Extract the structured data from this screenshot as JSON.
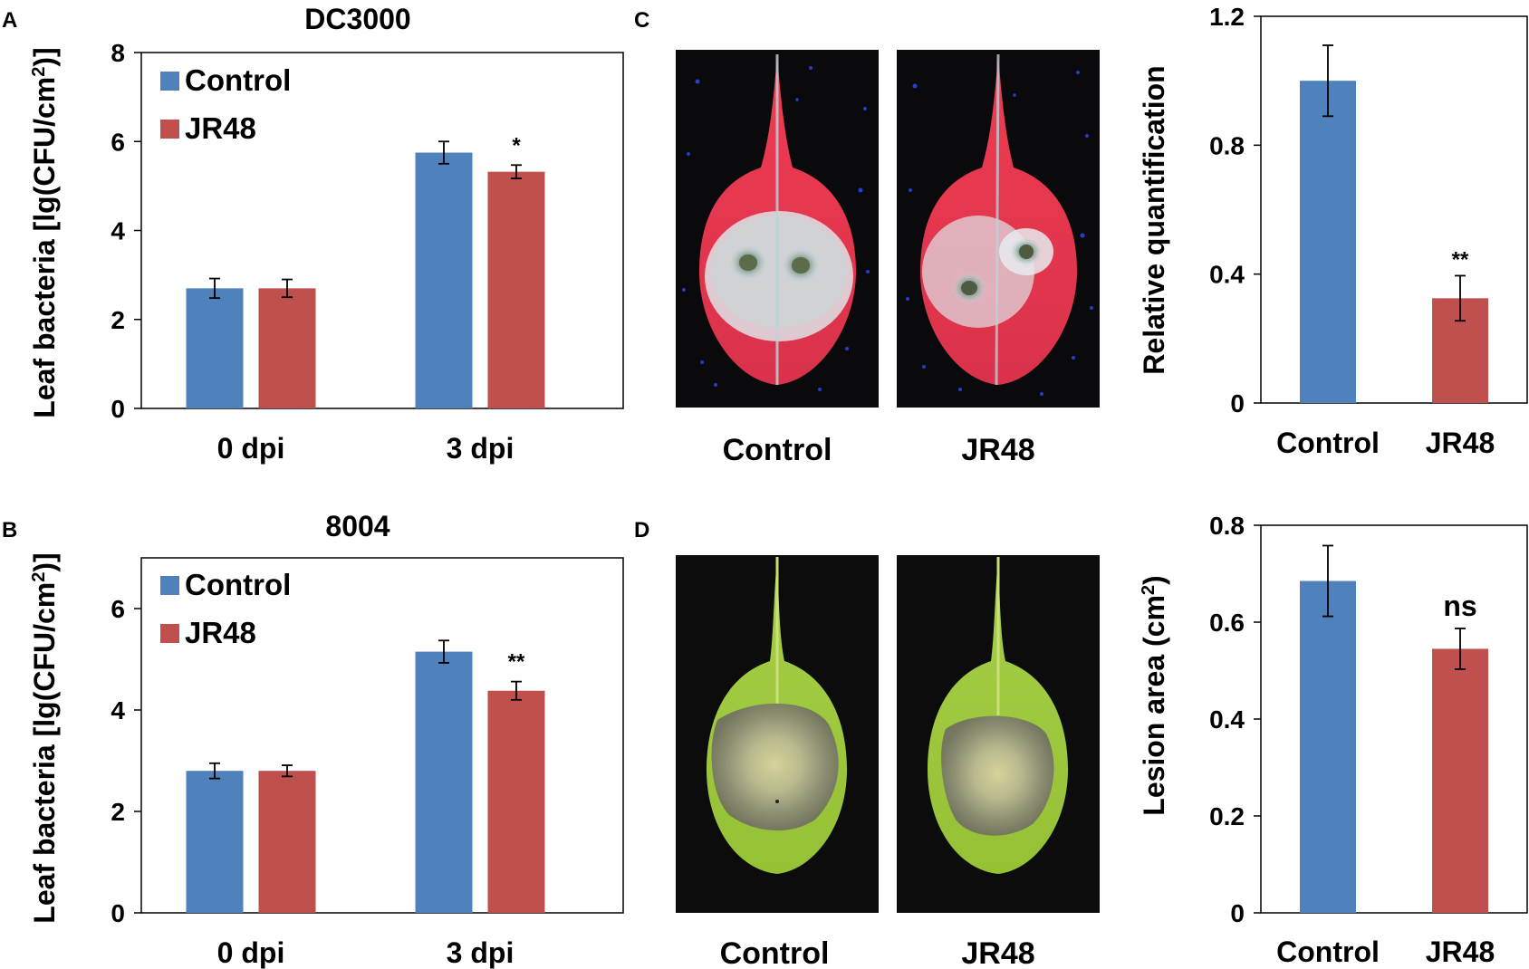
{
  "figure": {
    "panel_letters": [
      "A",
      "B",
      "C",
      "D"
    ]
  },
  "chart_data": [
    {
      "id": "A",
      "type": "bar",
      "title": "DC3000",
      "ylabel": "Leaf bacteria [lg(CFU/cm²)]",
      "ylabel_parts": [
        "Leaf bacteria [lg(CFU/cm",
        "2",
        ")]"
      ],
      "xlabel": "",
      "ylim": [
        0,
        8
      ],
      "yticks": [
        0,
        2,
        4,
        6,
        8
      ],
      "ytick_labels": [
        "0",
        "2",
        "4",
        "6",
        "8"
      ],
      "categories": [
        "0 dpi",
        "3 dpi"
      ],
      "legend": {
        "placement": "top-left",
        "entries": [
          "Control",
          "JR48"
        ]
      },
      "series": [
        {
          "name": "Control",
          "color": "#4F81BD",
          "values": [
            2.7,
            5.75
          ],
          "errors": [
            0.22,
            0.25
          ]
        },
        {
          "name": "JR48",
          "color": "#C0504D",
          "values": [
            2.7,
            5.32
          ],
          "errors": [
            0.2,
            0.15
          ]
        }
      ],
      "significance": [
        {
          "category": "3 dpi",
          "series": "JR48",
          "label": "*"
        }
      ]
    },
    {
      "id": "B",
      "type": "bar",
      "title": "8004",
      "ylabel": "Leaf bacteria [lg(CFU/cm²)]",
      "ylabel_parts": [
        "Leaf bacteria [lg(CFU/cm",
        "2",
        ")]"
      ],
      "xlabel": "",
      "ylim": [
        0,
        7
      ],
      "yticks": [
        0,
        2,
        4,
        6
      ],
      "ytick_labels": [
        "0",
        "2",
        "4",
        "6"
      ],
      "categories": [
        "0 dpi",
        "3 dpi"
      ],
      "legend": {
        "placement": "top-left",
        "entries": [
          "Control",
          "JR48"
        ]
      },
      "series": [
        {
          "name": "Control",
          "color": "#4F81BD",
          "values": [
            2.8,
            5.15
          ],
          "errors": [
            0.15,
            0.22
          ]
        },
        {
          "name": "JR48",
          "color": "#C0504D",
          "values": [
            2.8,
            4.38
          ],
          "errors": [
            0.11,
            0.18
          ]
        }
      ],
      "significance": [
        {
          "category": "3 dpi",
          "series": "JR48",
          "label": "**"
        }
      ]
    },
    {
      "id": "C-chart",
      "type": "bar",
      "title": "",
      "ylabel": "Relative quantification",
      "xlabel": "",
      "ylim": [
        0,
        1.2
      ],
      "yticks": [
        0,
        0.4,
        0.8,
        1.2
      ],
      "ytick_labels": [
        "0",
        "0.4",
        "0.8",
        "1.2"
      ],
      "categories": [
        "Control",
        "JR48"
      ],
      "colors": [
        "#4F81BD",
        "#C0504D"
      ],
      "values": [
        1.0,
        0.325
      ],
      "errors": [
        0.11,
        0.07
      ],
      "significance": [
        {
          "category": "JR48",
          "label": "**"
        }
      ]
    },
    {
      "id": "D-chart",
      "type": "bar",
      "title": "",
      "ylabel": "Lesion area (cm²)",
      "ylabel_parts": [
        "Lesion area (cm",
        "2",
        ")"
      ],
      "xlabel": "",
      "ylim": [
        0,
        0.8
      ],
      "yticks": [
        0,
        0.2,
        0.4,
        0.6,
        0.8
      ],
      "ytick_labels": [
        "0",
        "0.2",
        "0.4",
        "0.6",
        "0.8"
      ],
      "categories": [
        "Control",
        "JR48"
      ],
      "colors": [
        "#4F81BD",
        "#C0504D"
      ],
      "values": [
        0.685,
        0.545
      ],
      "errors": [
        0.073,
        0.042
      ],
      "significance": [
        {
          "category": "JR48",
          "label": "ns"
        }
      ]
    }
  ],
  "photos": {
    "C": {
      "labels": [
        "Control",
        "JR48"
      ],
      "style": "fluorescent",
      "background": "#0a0a0c",
      "leaf_color": "#e8253f"
    },
    "D": {
      "labels": [
        "Control",
        "JR48"
      ],
      "style": "brightfield",
      "background": "#0c0c0c",
      "leaf_color": "#9cc83a"
    }
  }
}
